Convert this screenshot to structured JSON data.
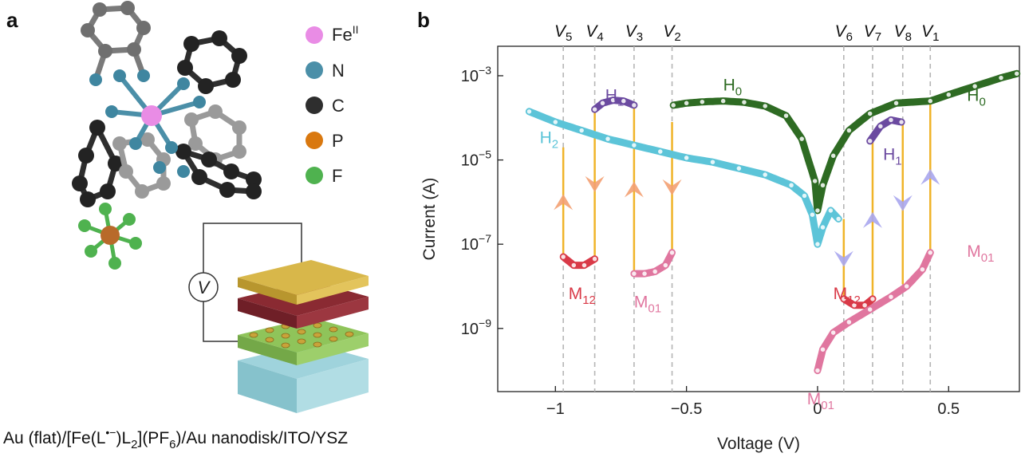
{
  "panel_a": {
    "label": "a",
    "legend": [
      {
        "label": "Fe",
        "sup": "II",
        "color": "#e98ce5"
      },
      {
        "label": "N",
        "sup": "",
        "color": "#4b8fa8"
      },
      {
        "label": "C",
        "sup": "",
        "color": "#2e2e2e"
      },
      {
        "label": "P",
        "sup": "",
        "color": "#d9780f"
      },
      {
        "label": "F",
        "sup": "",
        "color": "#4fb24f"
      }
    ],
    "meter_label": "V",
    "caption_parts": [
      "Au (flat)/[Fe(L",
      "•−",
      ")L",
      "2",
      "](PF",
      "6",
      ")/Au nanodisk/ITO/YSZ"
    ]
  },
  "panel_b": {
    "label": "b",
    "vlines": [
      {
        "name": "V",
        "sub": "5",
        "x": -0.97
      },
      {
        "name": "V",
        "sub": "4",
        "x": -0.85
      },
      {
        "name": "V",
        "sub": "3",
        "x": -0.7
      },
      {
        "name": "V",
        "sub": "2",
        "x": -0.555
      },
      {
        "name": "V",
        "sub": "6",
        "x": 0.1
      },
      {
        "name": "V",
        "sub": "7",
        "x": 0.21
      },
      {
        "name": "V",
        "sub": "8",
        "x": 0.325
      },
      {
        "name": "V",
        "sub": "1",
        "x": 0.43
      }
    ],
    "annotations": [
      {
        "base": "H",
        "sub": "1",
        "color": "#6b4aa0",
        "x": -0.81,
        "logy": -3.6
      },
      {
        "base": "H",
        "sub": "0",
        "color": "#2e6b23",
        "x": -0.36,
        "logy": -3.35
      },
      {
        "base": "H",
        "sub": "0",
        "color": "#2e6b23",
        "x": 0.57,
        "logy": -3.6
      },
      {
        "base": "H",
        "sub": "2",
        "color": "#5cc4d8",
        "x": -1.06,
        "logy": -4.6
      },
      {
        "base": "H",
        "sub": "1",
        "color": "#6b4aa0",
        "x": 0.25,
        "logy": -5.0
      },
      {
        "base": "M",
        "sub": "12",
        "color": "#d93a48",
        "x": -0.95,
        "logy": -8.3
      },
      {
        "base": "M",
        "sub": "01",
        "color": "#e0769f",
        "x": -0.7,
        "logy": -8.5
      },
      {
        "base": "M",
        "sub": "12",
        "color": "#d93a48",
        "x": 0.06,
        "logy": -8.3
      },
      {
        "base": "M",
        "sub": "01",
        "color": "#e0769f",
        "x": 0.57,
        "logy": -7.3
      },
      {
        "base": "M",
        "sub": "01",
        "color": "#e0769f",
        "x": -0.04,
        "logy": -10.8
      }
    ]
  },
  "chart_data": {
    "type": "line",
    "title": "",
    "xlabel": "Voltage (V)",
    "ylabel": "Current (A)",
    "xlim": [
      -1.22,
      0.77
    ],
    "ylim_log10": [
      -10.5,
      -2.3
    ],
    "yscale": "log",
    "xticks": [
      -1,
      -0.5,
      0,
      0.5
    ],
    "xtick_labels": [
      "−1",
      "−0.5",
      "0",
      "0.5"
    ],
    "yticks_log10": [
      -3,
      -5,
      -7,
      -9
    ],
    "ytick_bases": [
      "10",
      "10",
      "10",
      "10"
    ],
    "ytick_exps": [
      "−3",
      "−5",
      "−7",
      "−9"
    ],
    "grid": false,
    "series": [
      {
        "name": "H0",
        "color": "#2e6b23",
        "x": [
          -0.55,
          -0.5,
          -0.44,
          -0.36,
          -0.28,
          -0.2,
          -0.12,
          -0.06,
          -0.01,
          0.0,
          0.02,
          0.06,
          0.12,
          0.2,
          0.3,
          0.43,
          0.5,
          0.6,
          0.7,
          0.76
        ],
        "logy": [
          -3.7,
          -3.65,
          -3.62,
          -3.6,
          -3.63,
          -3.72,
          -3.95,
          -4.5,
          -5.5,
          -6.2,
          -5.6,
          -4.9,
          -4.3,
          -3.9,
          -3.65,
          -3.6,
          -3.45,
          -3.25,
          -3.05,
          -2.95
        ]
      },
      {
        "name": "H1 (negative)",
        "color": "#6b4aa0",
        "x": [
          -0.85,
          -0.82,
          -0.78,
          -0.74,
          -0.7
        ],
        "logy": [
          -3.8,
          -3.65,
          -3.58,
          -3.6,
          -3.7
        ]
      },
      {
        "name": "H1 (positive)",
        "color": "#6b4aa0",
        "x": [
          0.2,
          0.24,
          0.28,
          0.32
        ],
        "logy": [
          -4.55,
          -4.2,
          -4.05,
          -4.1
        ]
      },
      {
        "name": "H2",
        "color": "#5cc4d8",
        "x": [
          -1.1,
          -1.0,
          -0.9,
          -0.8,
          -0.7,
          -0.6,
          -0.5,
          -0.4,
          -0.3,
          -0.2,
          -0.1,
          -0.05,
          -0.02,
          0.0,
          0.02,
          0.05,
          0.08
        ],
        "logy": [
          -3.85,
          -4.1,
          -4.3,
          -4.5,
          -4.65,
          -4.8,
          -4.95,
          -5.05,
          -5.2,
          -5.35,
          -5.6,
          -5.85,
          -6.3,
          -7.0,
          -6.6,
          -6.2,
          -6.4
        ]
      },
      {
        "name": "M12 (negative)",
        "color": "#d93a48",
        "x": [
          -0.97,
          -0.93,
          -0.89,
          -0.85
        ],
        "logy": [
          -7.3,
          -7.5,
          -7.5,
          -7.35
        ]
      },
      {
        "name": "M01 (negative)",
        "color": "#e0769f",
        "x": [
          -0.7,
          -0.66,
          -0.62,
          -0.58,
          -0.555
        ],
        "logy": [
          -7.7,
          -7.7,
          -7.65,
          -7.5,
          -7.2
        ]
      },
      {
        "name": "M12 (positive)",
        "color": "#d93a48",
        "x": [
          0.1,
          0.14,
          0.18,
          0.21
        ],
        "logy": [
          -8.3,
          -8.45,
          -8.45,
          -8.3
        ]
      },
      {
        "name": "M01 (positive)",
        "color": "#e0769f",
        "x": [
          0.0,
          0.02,
          0.06,
          0.12,
          0.2,
          0.28,
          0.34,
          0.4,
          0.43
        ],
        "logy": [
          -10.0,
          -9.5,
          -9.1,
          -8.85,
          -8.55,
          -8.25,
          -8.0,
          -7.6,
          -7.2
        ]
      }
    ],
    "transitions": [
      {
        "x": -0.97,
        "from_logy": -4.7,
        "to_logy": -7.3,
        "dir": "up"
      },
      {
        "x": -0.85,
        "from_logy": -3.8,
        "to_logy": -7.35,
        "dir": "down"
      },
      {
        "x": -0.7,
        "from_logy": -3.7,
        "to_logy": -7.7,
        "dir": "up"
      },
      {
        "x": -0.555,
        "from_logy": -4.1,
        "to_logy": -7.2,
        "dir": "down"
      },
      {
        "x": 0.1,
        "from_logy": -6.4,
        "to_logy": -8.3,
        "dir": "down"
      },
      {
        "x": 0.21,
        "from_logy": -4.55,
        "to_logy": -8.3,
        "dir": "up"
      },
      {
        "x": 0.325,
        "from_logy": -4.1,
        "to_logy": -7.95,
        "dir": "down"
      },
      {
        "x": 0.43,
        "from_logy": -3.6,
        "to_logy": -7.2,
        "dir": "up"
      }
    ],
    "transition_color": "#f0b429"
  }
}
